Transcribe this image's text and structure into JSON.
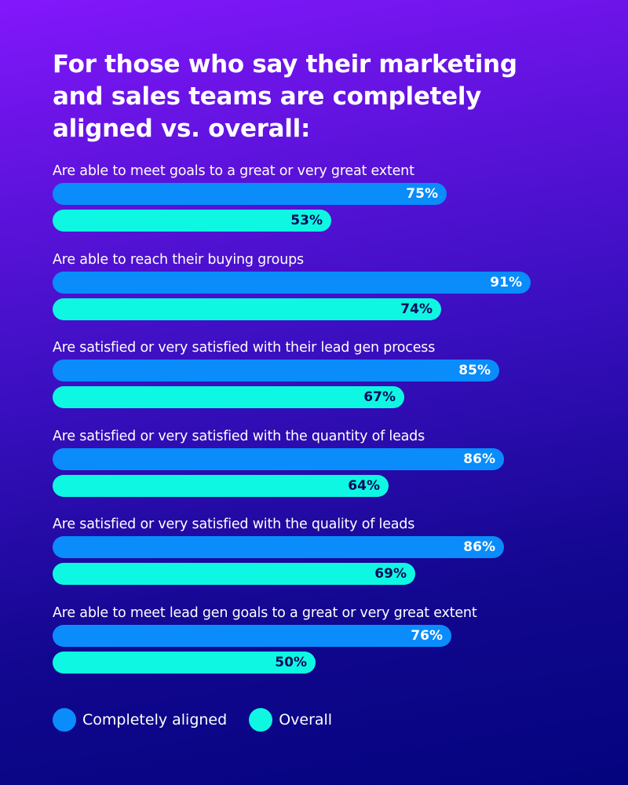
{
  "title": "For those who say their marketing and sales teams are completely aligned vs. overall:",
  "colors": {
    "completely_aligned": "#0a8cfb",
    "overall": "#0ef7e2",
    "bg_top": "#8317fc",
    "bg_bottom": "#04047e"
  },
  "legend": [
    {
      "label": "Completely aligned",
      "color": "#0a8cfb"
    },
    {
      "label": "Overall",
      "color": "#0ef7e2"
    }
  ],
  "groups": [
    {
      "label": "Are able to meet goals to a great or very great extent",
      "aligned": 75,
      "aligned_text": "75%",
      "overall": 53,
      "overall_text": "53%"
    },
    {
      "label": "Are able to reach their buying groups",
      "aligned": 91,
      "aligned_text": "91%",
      "overall": 74,
      "overall_text": "74%"
    },
    {
      "label": "Are satisfied or very satisfied with their lead gen process",
      "aligned": 85,
      "aligned_text": "85%",
      "overall": 67,
      "overall_text": "67%"
    },
    {
      "label": "Are satisfied or very satisfied with the quantity of leads",
      "aligned": 86,
      "aligned_text": "86%",
      "overall": 64,
      "overall_text": "64%"
    },
    {
      "label": "Are satisfied or very satisfied with the quality of leads",
      "aligned": 86,
      "aligned_text": "86%",
      "overall": 69,
      "overall_text": "69%"
    },
    {
      "label": "Are able to meet lead gen goals to a great or very great extent",
      "aligned": 76,
      "aligned_text": "76%",
      "overall": 50,
      "overall_text": "50%"
    }
  ],
  "chart_data": {
    "type": "bar",
    "orientation": "horizontal",
    "title": "For those who say their marketing and sales teams are completely aligned vs. overall:",
    "categories": [
      "Are able to meet goals to a great or very great extent",
      "Are able to reach their buying groups",
      "Are satisfied or very satisfied with their lead gen process",
      "Are satisfied or very satisfied with the quantity of leads",
      "Are satisfied or very satisfied with the quality of leads",
      "Are able to meet lead gen goals to a great or very great extent"
    ],
    "series": [
      {
        "name": "Completely aligned",
        "values": [
          75,
          91,
          85,
          86,
          86,
          76
        ],
        "color": "#0a8cfb"
      },
      {
        "name": "Overall",
        "values": [
          53,
          74,
          67,
          64,
          69,
          50
        ],
        "color": "#0ef7e2"
      }
    ],
    "xlabel": "",
    "ylabel": "",
    "unit": "%",
    "xlim": [
      0,
      100
    ],
    "grid": false,
    "legend_position": "bottom-left"
  }
}
